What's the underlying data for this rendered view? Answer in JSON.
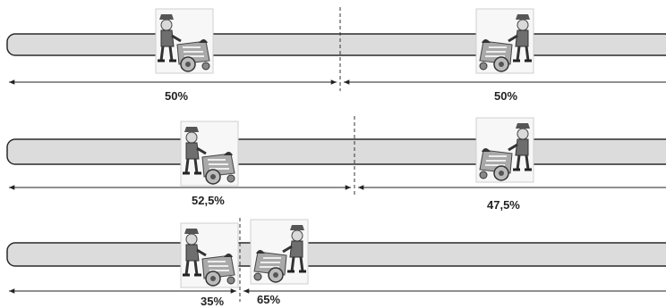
{
  "scenarios": [
    {
      "left_share": "50%",
      "right_share": "50%"
    },
    {
      "left_share": "52,5%",
      "right_share": "47,5%"
    },
    {
      "left_share": "35%",
      "right_share": "65%"
    }
  ],
  "vendor_icon": "ice-cream-vendor-with-cart-icon",
  "colors": {
    "beach_fill": "#dcdcdc",
    "outline": "#2a2a2a",
    "card_bg": "#f7f7f7"
  }
}
